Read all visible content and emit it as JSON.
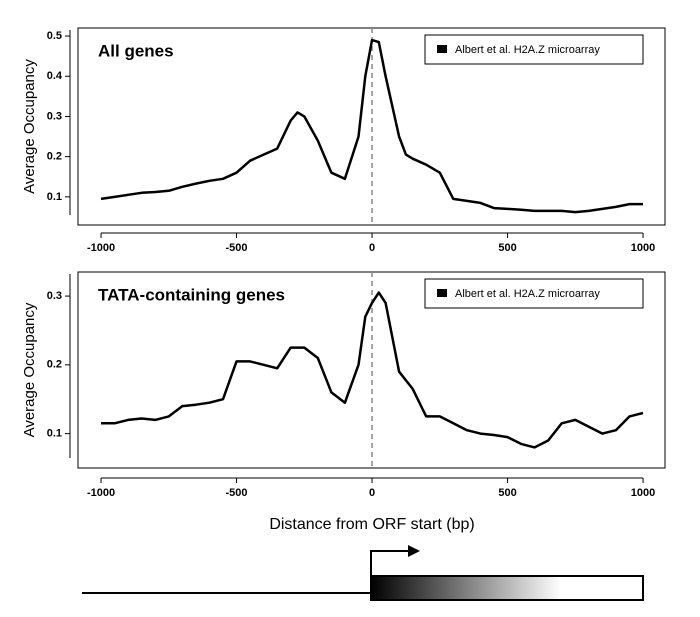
{
  "chart_data": [
    {
      "type": "line",
      "title": "All genes",
      "ylabel": "Average Occupancy",
      "xlim": [
        -1085,
        1081
      ],
      "ylim": [
        0.03,
        0.52
      ],
      "xticks": [
        -1000,
        -500,
        0,
        500,
        1000
      ],
      "yticks": [
        0.1,
        0.2,
        0.3,
        0.4,
        0.5
      ],
      "vline": 0,
      "x": [
        -1000,
        -950,
        -900,
        -850,
        -800,
        -750,
        -700,
        -650,
        -600,
        -550,
        -500,
        -450,
        -400,
        -350,
        -300,
        -275,
        -250,
        -200,
        -150,
        -100,
        -50,
        -25,
        0,
        25,
        50,
        100,
        125,
        150,
        200,
        250,
        300,
        350,
        400,
        450,
        500,
        550,
        600,
        650,
        700,
        750,
        800,
        850,
        900,
        950,
        1000
      ],
      "series": [
        {
          "name": "Albert et al. H2A.Z microarray",
          "color": "#000000",
          "values": [
            0.095,
            0.1,
            0.105,
            0.11,
            0.112,
            0.115,
            0.125,
            0.133,
            0.14,
            0.145,
            0.16,
            0.19,
            0.205,
            0.22,
            0.29,
            0.31,
            0.3,
            0.24,
            0.16,
            0.145,
            0.25,
            0.4,
            0.49,
            0.485,
            0.4,
            0.25,
            0.205,
            0.195,
            0.18,
            0.16,
            0.095,
            0.09,
            0.085,
            0.072,
            0.07,
            0.068,
            0.065,
            0.065,
            0.065,
            0.062,
            0.065,
            0.07,
            0.075,
            0.082,
            0.082
          ]
        }
      ]
    },
    {
      "type": "line",
      "title": "TATA-containing genes",
      "ylabel": "Average Occupancy",
      "xlabel": "Distance from ORF start (bp)",
      "xlim": [
        -1085,
        1081
      ],
      "ylim": [
        0.05,
        0.335
      ],
      "xticks": [
        -1000,
        -500,
        0,
        500,
        1000
      ],
      "yticks": [
        0.1,
        0.2,
        0.3
      ],
      "vline": 0,
      "x": [
        -1000,
        -950,
        -900,
        -850,
        -800,
        -750,
        -700,
        -650,
        -600,
        -550,
        -500,
        -450,
        -400,
        -350,
        -300,
        -250,
        -200,
        -150,
        -100,
        -50,
        -25,
        0,
        25,
        50,
        100,
        150,
        200,
        250,
        300,
        350,
        400,
        450,
        500,
        550,
        600,
        650,
        700,
        750,
        800,
        850,
        900,
        950,
        1000
      ],
      "series": [
        {
          "name": "Albert et al. H2A.Z microarray",
          "color": "#000000",
          "values": [
            0.115,
            0.115,
            0.12,
            0.122,
            0.12,
            0.125,
            0.14,
            0.142,
            0.145,
            0.15,
            0.205,
            0.205,
            0.2,
            0.195,
            0.225,
            0.225,
            0.21,
            0.16,
            0.145,
            0.2,
            0.27,
            0.29,
            0.305,
            0.29,
            0.19,
            0.165,
            0.125,
            0.125,
            0.115,
            0.105,
            0.1,
            0.098,
            0.095,
            0.085,
            0.08,
            0.09,
            0.115,
            0.12,
            0.11,
            0.1,
            0.105,
            0.125,
            0.13
          ]
        }
      ]
    }
  ]
}
